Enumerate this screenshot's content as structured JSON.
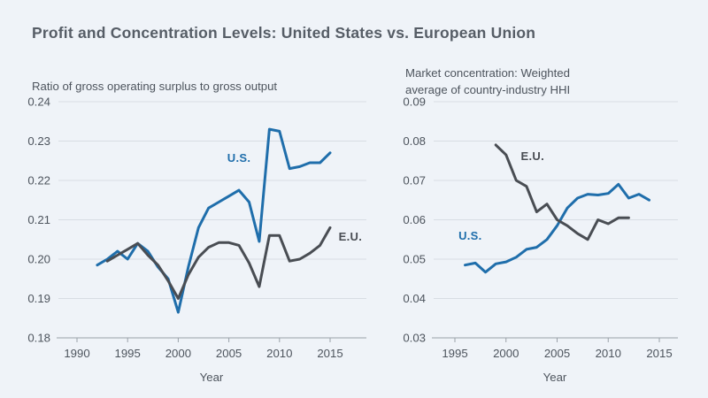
{
  "page": {
    "title": "Profit and Concentration Levels: United States vs. European Union",
    "background": "#eff3f8",
    "text_color": "#4d545d",
    "title_color": "#565d66",
    "grid_color": "#d8dde3",
    "axis_color": "#9aa1a9",
    "us_color": "#1f6eab",
    "eu_color": "#494d53"
  },
  "chart_data": [
    {
      "type": "line",
      "title": "Ratio of gross operating surplus to gross output",
      "title_lines": [
        "Ratio of gross operating surplus to gross output"
      ],
      "xlabel": "Year",
      "ylabel": "",
      "xlim": [
        1988,
        2018.6
      ],
      "ylim": [
        0.18,
        0.24
      ],
      "grid": true,
      "legend_position": "inline-labels",
      "yticks": [
        0.18,
        0.19,
        0.2,
        0.21,
        0.22,
        0.23,
        0.24
      ],
      "ytick_labels": [
        "0.18",
        "0.19",
        "0.20",
        "0.21",
        "0.22",
        "0.23",
        "0.24"
      ],
      "xticks": [
        1990,
        1995,
        2000,
        2005,
        2010,
        2015
      ],
      "xtick_labels": [
        "1990",
        "1995",
        "2000",
        "2005",
        "2010",
        "2015"
      ],
      "series": [
        {
          "name": "U.S.",
          "color": "#1f6eab",
          "x": [
            1992,
            1993,
            1994,
            1995,
            1996,
            1997,
            1998,
            1999,
            2000,
            2001,
            2002,
            2003,
            2004,
            2005,
            2006,
            2007,
            2008,
            2009,
            2010,
            2011,
            2012,
            2013,
            2014,
            2015
          ],
          "values": [
            0.1985,
            0.2,
            0.202,
            0.2,
            0.204,
            0.202,
            0.198,
            0.195,
            0.1865,
            0.198,
            0.208,
            0.213,
            0.2145,
            0.216,
            0.2175,
            0.2145,
            0.2045,
            0.233,
            0.2325,
            0.223,
            0.2235,
            0.2245,
            0.2245,
            0.227
          ],
          "label": {
            "text": "U.S.",
            "x": 2006.0,
            "y": 0.2247
          }
        },
        {
          "name": "E.U.",
          "color": "#494d53",
          "x": [
            1993,
            1994,
            1995,
            1996,
            1997,
            1998,
            1999,
            2000,
            2001,
            2002,
            2003,
            2004,
            2005,
            2006,
            2007,
            2008,
            2009,
            2010,
            2011,
            2012,
            2013,
            2014,
            2015
          ],
          "values": [
            0.1995,
            0.201,
            0.2025,
            0.204,
            0.201,
            0.1985,
            0.1945,
            0.19,
            0.196,
            0.2005,
            0.203,
            0.2042,
            0.2042,
            0.2035,
            0.199,
            0.193,
            0.206,
            0.206,
            0.1995,
            0.2,
            0.2015,
            0.2035,
            0.208
          ],
          "label": {
            "text": "E.U.",
            "x": 2017.0,
            "y": 0.2047
          }
        }
      ]
    },
    {
      "type": "line",
      "title": "Market concentration: Weighted average of country-industry HHI",
      "title_lines": [
        "Market concentration: Weighted",
        "average of country-industry HHI"
      ],
      "xlabel": "Year",
      "ylabel": "",
      "xlim": [
        1992.9,
        2016.8
      ],
      "ylim": [
        0.03,
        0.09
      ],
      "grid": true,
      "legend_position": "inline-labels",
      "yticks": [
        0.03,
        0.04,
        0.05,
        0.06,
        0.07,
        0.08,
        0.09
      ],
      "ytick_labels": [
        "0.03",
        "0.04",
        "0.05",
        "0.06",
        "0.07",
        "0.08",
        "0.09"
      ],
      "xticks": [
        1995,
        2000,
        2005,
        2010,
        2015
      ],
      "xtick_labels": [
        "1995",
        "2000",
        "2005",
        "2010",
        "2015"
      ],
      "series": [
        {
          "name": "U.S.",
          "color": "#1f6eab",
          "x": [
            1996,
            1997,
            1998,
            1999,
            2000,
            2001,
            2002,
            2003,
            2004,
            2005,
            2006,
            2007,
            2008,
            2009,
            2010,
            2011,
            2012,
            2013,
            2014
          ],
          "values": [
            0.0485,
            0.049,
            0.0467,
            0.0488,
            0.0493,
            0.0505,
            0.0525,
            0.053,
            0.055,
            0.0585,
            0.063,
            0.0655,
            0.0665,
            0.0663,
            0.0667,
            0.069,
            0.0655,
            0.0665,
            0.065
          ],
          "label": {
            "text": "U.S.",
            "x": 1996.5,
            "y": 0.0549
          }
        },
        {
          "name": "E.U.",
          "color": "#494d53",
          "x": [
            1999,
            2000,
            2001,
            2002,
            2003,
            2004,
            2005,
            2006,
            2007,
            2008,
            2009,
            2010,
            2011,
            2012
          ],
          "values": [
            0.079,
            0.0765,
            0.07,
            0.0685,
            0.062,
            0.064,
            0.06,
            0.0585,
            0.0565,
            0.055,
            0.06,
            0.059,
            0.0605,
            0.0605
          ],
          "label": {
            "text": "E.U.",
            "x": 2002.6,
            "y": 0.0752
          }
        }
      ]
    }
  ]
}
